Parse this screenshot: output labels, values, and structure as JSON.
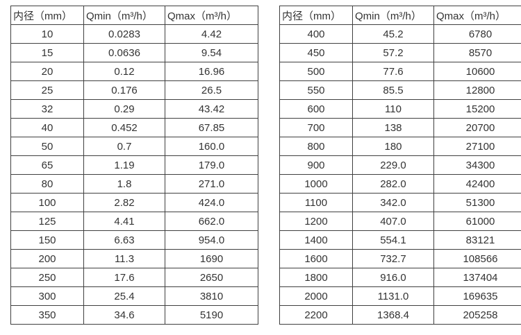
{
  "colors": {
    "background": "#ffffff",
    "border": "#3f3f3f",
    "text": "#333333"
  },
  "tables": [
    {
      "name": "flow-spec-table-small-diameters",
      "headers": [
        "内径（mm）",
        "Qmin（m³/h）",
        "Qmax（m³/h）"
      ],
      "rows": [
        [
          "10",
          "0.0283",
          "4.42"
        ],
        [
          "15",
          "0.0636",
          "9.54"
        ],
        [
          "20",
          "0.12",
          "16.96"
        ],
        [
          "25",
          "0.176",
          "26.5"
        ],
        [
          "32",
          "0.29",
          "43.42"
        ],
        [
          "40",
          "0.452",
          "67.85"
        ],
        [
          "50",
          "0.7",
          "160.0"
        ],
        [
          "65",
          "1.19",
          "179.0"
        ],
        [
          "80",
          "1.8",
          "271.0"
        ],
        [
          "100",
          "2.82",
          "424.0"
        ],
        [
          "125",
          "4.41",
          "662.0"
        ],
        [
          "150",
          "6.63",
          "954.0"
        ],
        [
          "200",
          "11.3",
          "1690"
        ],
        [
          "250",
          "17.6",
          "2650"
        ],
        [
          "300",
          "25.4",
          "3810"
        ],
        [
          "350",
          "34.6",
          "5190"
        ]
      ]
    },
    {
      "name": "flow-spec-table-large-diameters",
      "headers": [
        "内径（mm）",
        "Qmin（m³/h）",
        "Qmax（m³/h）"
      ],
      "rows": [
        [
          "400",
          "45.2",
          "6780"
        ],
        [
          "450",
          "57.2",
          "8570"
        ],
        [
          "500",
          "77.6",
          "10600"
        ],
        [
          "550",
          "85.5",
          "12800"
        ],
        [
          "600",
          "110",
          "15200"
        ],
        [
          "700",
          "138",
          "20700"
        ],
        [
          "800",
          "180",
          "27100"
        ],
        [
          "900",
          "229.0",
          "34300"
        ],
        [
          "1000",
          "282.0",
          "42400"
        ],
        [
          "1100",
          "342.0",
          "51300"
        ],
        [
          "1200",
          "407.0",
          "61000"
        ],
        [
          "1400",
          "554.1",
          "83121"
        ],
        [
          "1600",
          "732.7",
          "108566"
        ],
        [
          "1800",
          "916.0",
          "137404"
        ],
        [
          "2000",
          "1131.0",
          "169635"
        ],
        [
          "2200",
          "1368.4",
          "205258"
        ]
      ]
    }
  ]
}
